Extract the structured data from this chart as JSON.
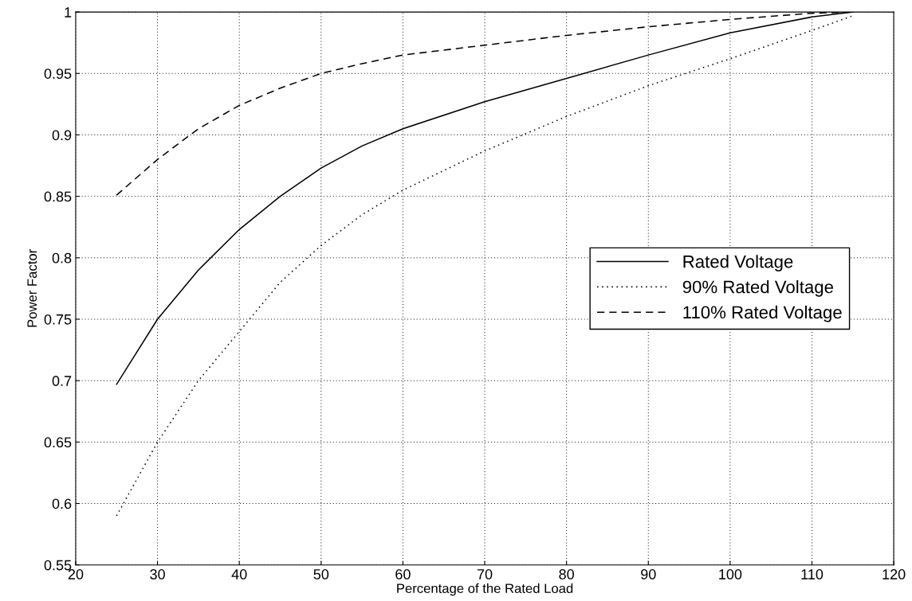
{
  "chart_data": {
    "type": "line",
    "xlabel": "Percentage of the Rated Load",
    "ylabel": "Power Factor",
    "x": [
      25,
      30,
      35,
      40,
      45,
      50,
      55,
      60,
      70,
      80,
      90,
      100,
      110,
      115
    ],
    "series": [
      {
        "name": "Rated Voltage",
        "color": "#000000",
        "line_style": "solid",
        "values": [
          0.697,
          0.75,
          0.79,
          0.823,
          0.85,
          0.873,
          0.891,
          0.905,
          0.927,
          0.946,
          0.965,
          0.983,
          0.996,
          1.0
        ]
      },
      {
        "name": "90% Rated Voltage",
        "color": "#000000",
        "line_style": "dotted",
        "values": [
          0.59,
          0.65,
          0.7,
          0.74,
          0.78,
          0.81,
          0.835,
          0.855,
          0.887,
          0.915,
          0.94,
          0.962,
          0.985,
          0.997
        ]
      },
      {
        "name": "110% Rated Voltage",
        "color": "#000000",
        "line_style": "dashed",
        "values": [
          0.851,
          0.88,
          0.905,
          0.924,
          0.938,
          0.95,
          0.958,
          0.965,
          0.973,
          0.981,
          0.988,
          0.994,
          0.999,
          1.0
        ]
      }
    ],
    "xlim": [
      20,
      120
    ],
    "xticks": [
      20,
      30,
      40,
      50,
      60,
      70,
      80,
      90,
      100,
      110,
      120
    ],
    "ylim": [
      0.55,
      1
    ],
    "yticks": [
      0.55,
      0.6,
      0.65,
      0.7,
      0.75,
      0.8,
      0.85,
      0.9,
      0.95,
      1
    ],
    "grid": true,
    "legend": "center right",
    "marker": "none"
  }
}
